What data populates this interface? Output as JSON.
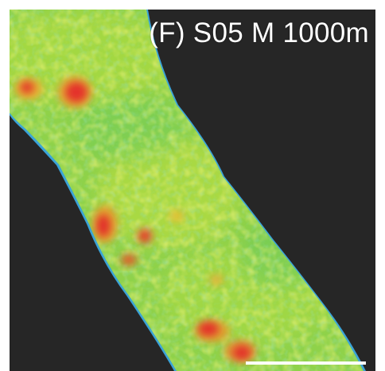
{
  "panel": {
    "label": "(F) S05 M 1000m"
  },
  "colors": {
    "background": "#262626",
    "edge_blue": "#3aa3d8",
    "low_cyan": "#45c7a4",
    "mid_green": "#74d14c",
    "high_yellow": "#d8e43a",
    "peak_red": "#e4322a",
    "scale_bar": "#ffffff"
  }
}
